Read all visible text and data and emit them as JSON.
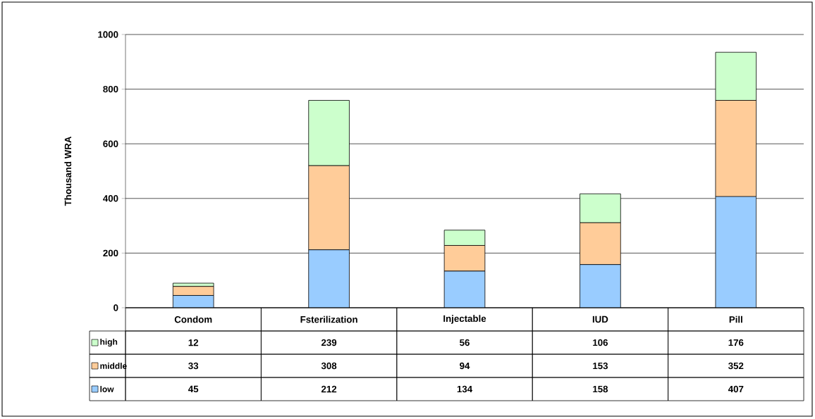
{
  "chart_data": {
    "type": "bar",
    "stacked": true,
    "ylabel": "Thousand WRA",
    "categories": [
      "Condom",
      "Fsterilization",
      "Injectable",
      "IUD",
      "Pill"
    ],
    "series": [
      {
        "name": "low",
        "color": "#99ccff",
        "values": [
          45,
          212,
          134,
          158,
          407
        ]
      },
      {
        "name": "middle",
        "color": "#ffcc99",
        "values": [
          33,
          308,
          94,
          153,
          352
        ]
      },
      {
        "name": "high",
        "color": "#ccffcc",
        "values": [
          12,
          239,
          56,
          106,
          176
        ]
      }
    ],
    "ylim": [
      0,
      1000
    ],
    "yticks": [
      0,
      200,
      400,
      600,
      800,
      1000
    ],
    "grid": "y",
    "data_labels": true,
    "legend": "bottom left"
  }
}
